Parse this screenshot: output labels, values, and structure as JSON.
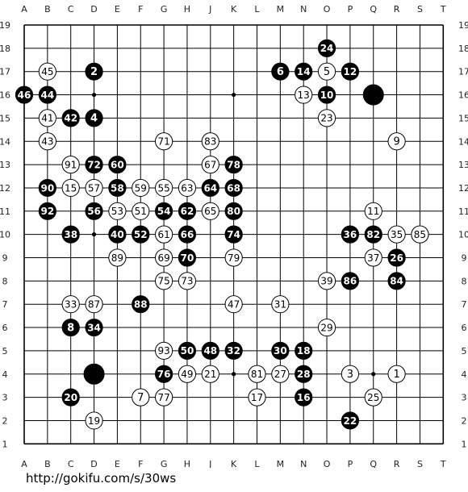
{
  "columns": [
    "A",
    "B",
    "C",
    "D",
    "E",
    "F",
    "G",
    "H",
    "J",
    "K",
    "L",
    "M",
    "N",
    "O",
    "P",
    "Q",
    "R",
    "S",
    "T"
  ],
  "rows": [
    "19",
    "18",
    "17",
    "16",
    "15",
    "14",
    "13",
    "12",
    "11",
    "10",
    "9",
    "8",
    "7",
    "6",
    "5",
    "4",
    "3",
    "2",
    "1"
  ],
  "hoshi": [
    "D16",
    "K16",
    "Q16",
    "D10",
    "K10",
    "Q10",
    "D4",
    "K4",
    "Q4"
  ],
  "stones": [
    {
      "c": "O",
      "r": 18,
      "color": "black",
      "label": "24"
    },
    {
      "c": "B",
      "r": 17,
      "color": "white",
      "label": "45"
    },
    {
      "c": "D",
      "r": 17,
      "color": "black",
      "label": "2"
    },
    {
      "c": "M",
      "r": 17,
      "color": "black",
      "label": "6"
    },
    {
      "c": "N",
      "r": 17,
      "color": "black",
      "label": "14"
    },
    {
      "c": "O",
      "r": 17,
      "color": "white",
      "label": "5"
    },
    {
      "c": "P",
      "r": 17,
      "color": "black",
      "label": "12"
    },
    {
      "c": "A",
      "r": 16,
      "color": "black",
      "label": "46"
    },
    {
      "c": "B",
      "r": 16,
      "color": "black",
      "label": "44"
    },
    {
      "c": "N",
      "r": 16,
      "color": "white",
      "label": "13"
    },
    {
      "c": "O",
      "r": 16,
      "color": "black",
      "label": "10"
    },
    {
      "c": "Q",
      "r": 16,
      "color": "black",
      "label": ""
    },
    {
      "c": "B",
      "r": 15,
      "color": "white",
      "label": "41"
    },
    {
      "c": "C",
      "r": 15,
      "color": "black",
      "label": "42"
    },
    {
      "c": "D",
      "r": 15,
      "color": "black",
      "label": "4"
    },
    {
      "c": "O",
      "r": 15,
      "color": "white",
      "label": "23"
    },
    {
      "c": "B",
      "r": 14,
      "color": "white",
      "label": "43"
    },
    {
      "c": "G",
      "r": 14,
      "color": "white",
      "label": "71"
    },
    {
      "c": "J",
      "r": 14,
      "color": "white",
      "label": "83"
    },
    {
      "c": "R",
      "r": 14,
      "color": "white",
      "label": "9"
    },
    {
      "c": "C",
      "r": 13,
      "color": "white",
      "label": "91"
    },
    {
      "c": "D",
      "r": 13,
      "color": "black",
      "label": "72"
    },
    {
      "c": "E",
      "r": 13,
      "color": "black",
      "label": "60"
    },
    {
      "c": "J",
      "r": 13,
      "color": "white",
      "label": "67"
    },
    {
      "c": "K",
      "r": 13,
      "color": "black",
      "label": "78"
    },
    {
      "c": "B",
      "r": 12,
      "color": "black",
      "label": "90"
    },
    {
      "c": "C",
      "r": 12,
      "color": "white",
      "label": "15"
    },
    {
      "c": "D",
      "r": 12,
      "color": "white",
      "label": "57"
    },
    {
      "c": "E",
      "r": 12,
      "color": "black",
      "label": "58"
    },
    {
      "c": "F",
      "r": 12,
      "color": "white",
      "label": "59"
    },
    {
      "c": "G",
      "r": 12,
      "color": "white",
      "label": "55"
    },
    {
      "c": "H",
      "r": 12,
      "color": "white",
      "label": "63"
    },
    {
      "c": "J",
      "r": 12,
      "color": "black",
      "label": "64"
    },
    {
      "c": "K",
      "r": 12,
      "color": "black",
      "label": "68"
    },
    {
      "c": "B",
      "r": 11,
      "color": "black",
      "label": "92"
    },
    {
      "c": "D",
      "r": 11,
      "color": "black",
      "label": "56"
    },
    {
      "c": "E",
      "r": 11,
      "color": "white",
      "label": "53"
    },
    {
      "c": "F",
      "r": 11,
      "color": "white",
      "label": "51"
    },
    {
      "c": "G",
      "r": 11,
      "color": "black",
      "label": "54"
    },
    {
      "c": "H",
      "r": 11,
      "color": "black",
      "label": "62"
    },
    {
      "c": "J",
      "r": 11,
      "color": "white",
      "label": "65"
    },
    {
      "c": "K",
      "r": 11,
      "color": "black",
      "label": "80"
    },
    {
      "c": "Q",
      "r": 11,
      "color": "white",
      "label": "11"
    },
    {
      "c": "C",
      "r": 10,
      "color": "black",
      "label": "38"
    },
    {
      "c": "E",
      "r": 10,
      "color": "black",
      "label": "40"
    },
    {
      "c": "F",
      "r": 10,
      "color": "black",
      "label": "52"
    },
    {
      "c": "G",
      "r": 10,
      "color": "white",
      "label": "61"
    },
    {
      "c": "H",
      "r": 10,
      "color": "black",
      "label": "66"
    },
    {
      "c": "K",
      "r": 10,
      "color": "black",
      "label": "74"
    },
    {
      "c": "P",
      "r": 10,
      "color": "black",
      "label": "36"
    },
    {
      "c": "Q",
      "r": 10,
      "color": "black",
      "label": "82"
    },
    {
      "c": "R",
      "r": 10,
      "color": "white",
      "label": "35"
    },
    {
      "c": "S",
      "r": 10,
      "color": "white",
      "label": "85"
    },
    {
      "c": "E",
      "r": 9,
      "color": "white",
      "label": "89"
    },
    {
      "c": "G",
      "r": 9,
      "color": "white",
      "label": "69"
    },
    {
      "c": "H",
      "r": 9,
      "color": "black",
      "label": "70"
    },
    {
      "c": "K",
      "r": 9,
      "color": "white",
      "label": "79"
    },
    {
      "c": "Q",
      "r": 9,
      "color": "white",
      "label": "37"
    },
    {
      "c": "R",
      "r": 9,
      "color": "black",
      "label": "26"
    },
    {
      "c": "G",
      "r": 8,
      "color": "white",
      "label": "75"
    },
    {
      "c": "H",
      "r": 8,
      "color": "white",
      "label": "73"
    },
    {
      "c": "O",
      "r": 8,
      "color": "white",
      "label": "39"
    },
    {
      "c": "P",
      "r": 8,
      "color": "black",
      "label": "86"
    },
    {
      "c": "R",
      "r": 8,
      "color": "black",
      "label": "84"
    },
    {
      "c": "C",
      "r": 7,
      "color": "white",
      "label": "33"
    },
    {
      "c": "D",
      "r": 7,
      "color": "white",
      "label": "87"
    },
    {
      "c": "F",
      "r": 7,
      "color": "black",
      "label": "88"
    },
    {
      "c": "K",
      "r": 7,
      "color": "white",
      "label": "47"
    },
    {
      "c": "M",
      "r": 7,
      "color": "white",
      "label": "31"
    },
    {
      "c": "C",
      "r": 6,
      "color": "black",
      "label": "8"
    },
    {
      "c": "D",
      "r": 6,
      "color": "black",
      "label": "34"
    },
    {
      "c": "O",
      "r": 6,
      "color": "white",
      "label": "29"
    },
    {
      "c": "G",
      "r": 5,
      "color": "white",
      "label": "93"
    },
    {
      "c": "H",
      "r": 5,
      "color": "black",
      "label": "50"
    },
    {
      "c": "J",
      "r": 5,
      "color": "black",
      "label": "48"
    },
    {
      "c": "K",
      "r": 5,
      "color": "black",
      "label": "32"
    },
    {
      "c": "M",
      "r": 5,
      "color": "black",
      "label": "30"
    },
    {
      "c": "N",
      "r": 5,
      "color": "black",
      "label": "18"
    },
    {
      "c": "D",
      "r": 4,
      "color": "black",
      "label": ""
    },
    {
      "c": "G",
      "r": 4,
      "color": "black",
      "label": "76"
    },
    {
      "c": "H",
      "r": 4,
      "color": "white",
      "label": "49"
    },
    {
      "c": "J",
      "r": 4,
      "color": "white",
      "label": "21"
    },
    {
      "c": "L",
      "r": 4,
      "color": "white",
      "label": "81"
    },
    {
      "c": "M",
      "r": 4,
      "color": "white",
      "label": "27"
    },
    {
      "c": "N",
      "r": 4,
      "color": "black",
      "label": "28"
    },
    {
      "c": "P",
      "r": 4,
      "color": "white",
      "label": "3"
    },
    {
      "c": "R",
      "r": 4,
      "color": "white",
      "label": "1"
    },
    {
      "c": "C",
      "r": 3,
      "color": "black",
      "label": "20"
    },
    {
      "c": "F",
      "r": 3,
      "color": "white",
      "label": "7"
    },
    {
      "c": "G",
      "r": 3,
      "color": "white",
      "label": "77"
    },
    {
      "c": "L",
      "r": 3,
      "color": "white",
      "label": "17"
    },
    {
      "c": "N",
      "r": 3,
      "color": "black",
      "label": "16"
    },
    {
      "c": "Q",
      "r": 3,
      "color": "white",
      "label": "25"
    },
    {
      "c": "D",
      "r": 2,
      "color": "white",
      "label": "19"
    },
    {
      "c": "P",
      "r": 2,
      "color": "black",
      "label": "22"
    }
  ],
  "footer": {
    "url_text": "http://gokifu.com/s/30ws"
  }
}
